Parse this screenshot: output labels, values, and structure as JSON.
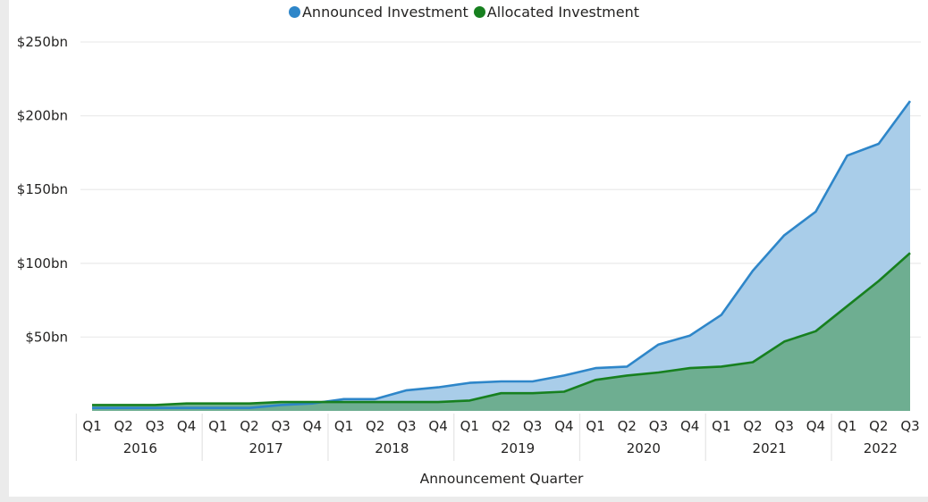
{
  "legend": {
    "items": [
      {
        "label": "Announced Investment",
        "color": "#2e86c9"
      },
      {
        "label": "Allocated Investment",
        "color": "#17801f"
      }
    ]
  },
  "axis": {
    "x_title": "Announcement Quarter",
    "y_ticks": [
      "$250bn",
      "$200bn",
      "$150bn",
      "$100bn",
      "$50bn"
    ]
  },
  "chart_data": {
    "type": "area",
    "title": "",
    "xlabel": "Announcement Quarter",
    "ylabel": "",
    "ylim": [
      0,
      250
    ],
    "y_tick_values": [
      50,
      100,
      150,
      200,
      250
    ],
    "y_tick_labels": [
      "$50bn",
      "$100bn",
      "$150bn",
      "$200bn",
      "$250bn"
    ],
    "grid": true,
    "legend_position": "top-center",
    "years": [
      {
        "year": "2016",
        "quarters": [
          "Q1",
          "Q2",
          "Q3",
          "Q4"
        ]
      },
      {
        "year": "2017",
        "quarters": [
          "Q1",
          "Q2",
          "Q3",
          "Q4"
        ]
      },
      {
        "year": "2018",
        "quarters": [
          "Q1",
          "Q2",
          "Q3",
          "Q4"
        ]
      },
      {
        "year": "2019",
        "quarters": [
          "Q1",
          "Q2",
          "Q3",
          "Q4"
        ]
      },
      {
        "year": "2020",
        "quarters": [
          "Q1",
          "Q2",
          "Q3",
          "Q4"
        ]
      },
      {
        "year": "2021",
        "quarters": [
          "Q1",
          "Q2",
          "Q3",
          "Q4"
        ]
      },
      {
        "year": "2022",
        "quarters": [
          "Q1",
          "Q2",
          "Q3"
        ]
      }
    ],
    "categories": [
      "2016 Q1",
      "2016 Q2",
      "2016 Q3",
      "2016 Q4",
      "2017 Q1",
      "2017 Q2",
      "2017 Q3",
      "2017 Q4",
      "2018 Q1",
      "2018 Q2",
      "2018 Q3",
      "2018 Q4",
      "2019 Q1",
      "2019 Q2",
      "2019 Q3",
      "2019 Q4",
      "2020 Q1",
      "2020 Q2",
      "2020 Q3",
      "2020 Q4",
      "2021 Q1",
      "2021 Q2",
      "2021 Q3",
      "2021 Q4",
      "2022 Q1",
      "2022 Q2",
      "2022 Q3"
    ],
    "series": [
      {
        "name": "Announced Investment",
        "color": "#2e86c9",
        "fill": "#a9cde9",
        "values": [
          2,
          2,
          2,
          2,
          2,
          2,
          4,
          5,
          8,
          8,
          14,
          16,
          19,
          20,
          20,
          24,
          29,
          30,
          45,
          51,
          65,
          95,
          119,
          135,
          173,
          181,
          210
        ]
      },
      {
        "name": "Allocated Investment",
        "color": "#17801f",
        "fill": "#6aac8c",
        "values": [
          4,
          4,
          4,
          5,
          5,
          5,
          6,
          6,
          6,
          6,
          6,
          6,
          7,
          12,
          12,
          13,
          21,
          24,
          26,
          29,
          30,
          33,
          47,
          54,
          71,
          88,
          107
        ]
      }
    ]
  }
}
